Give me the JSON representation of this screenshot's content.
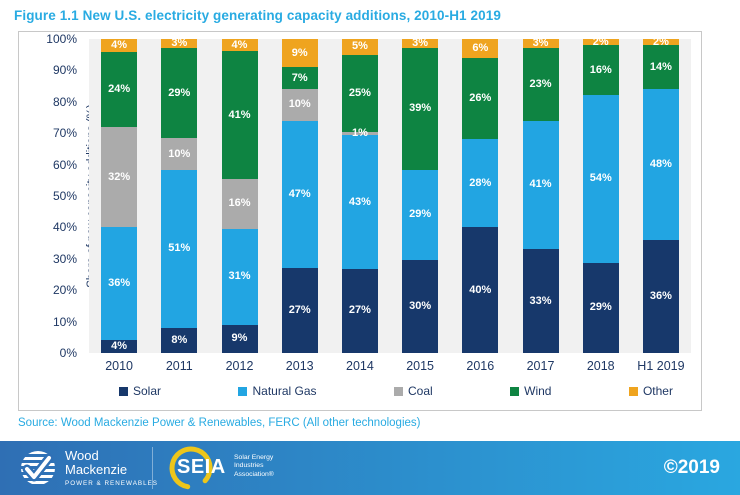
{
  "title": "Figure 1.1 New U.S. electricity generating capacity additions, 2010-H1 2019",
  "chart_data": {
    "type": "bar",
    "stacked": true,
    "title": "Figure 1.1 New U.S. electricity generating capacity additions, 2010-H1 2019",
    "categories": [
      "2010",
      "2011",
      "2012",
      "2013",
      "2014",
      "2015",
      "2016",
      "2017",
      "2018",
      "H1 2019"
    ],
    "series": [
      {
        "name": "Solar",
        "color": "#17386B",
        "values": [
          4,
          8,
          9,
          27,
          27,
          30,
          40,
          33,
          29,
          36
        ]
      },
      {
        "name": "Natural Gas",
        "color": "#22A5E2",
        "values": [
          36,
          51,
          31,
          47,
          43,
          29,
          28,
          41,
          54,
          48
        ]
      },
      {
        "name": "Coal",
        "color": "#ABABAB",
        "values": [
          32,
          10,
          16,
          10,
          1,
          0,
          0,
          0,
          0,
          0
        ]
      },
      {
        "name": "Wind",
        "color": "#0E8442",
        "values": [
          24,
          29,
          41,
          7,
          25,
          39,
          26,
          23,
          16,
          14
        ]
      },
      {
        "name": "Other",
        "color": "#EFA41F",
        "values": [
          4,
          3,
          4,
          9,
          5,
          3,
          6,
          3,
          2,
          2
        ]
      }
    ],
    "xlabel": "",
    "ylabel": "Share of new capacity additions (%)",
    "ylim": [
      0,
      100
    ],
    "yticks": [
      "0%",
      "10%",
      "20%",
      "30%",
      "40%",
      "50%",
      "60%",
      "70%",
      "80%",
      "90%",
      "100%"
    ],
    "grid": false,
    "legend_position": "bottom",
    "value_label_suffix": "%"
  },
  "source": "Source: Wood Mackenzie Power & Renewables, FERC (All other technologies)",
  "footer": {
    "wood_mackenzie": {
      "name_line1": "Wood",
      "name_line2": "Mackenzie",
      "tagline": "POWER & RENEWABLES"
    },
    "seia": {
      "acronym": "SEIA",
      "name_line1": "Solar Energy",
      "name_line2": "Industries",
      "name_line3": "Association®"
    },
    "copyright": "©2019"
  }
}
